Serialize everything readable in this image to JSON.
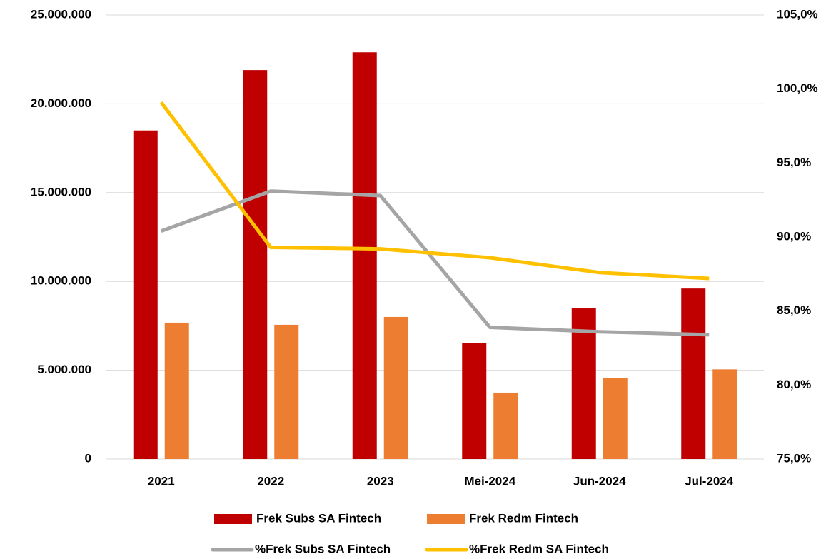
{
  "chart_data": {
    "type": "bar",
    "categories": [
      "2021",
      "2022",
      "2023",
      "Mei-2024",
      "Jun-2024",
      "Jul-2024"
    ],
    "series": [
      {
        "name": "Frek Subs SA Fintech",
        "type": "bar",
        "color": "#c00000",
        "values": [
          18500000,
          21900000,
          22900000,
          6550000,
          8480000,
          9600000
        ]
      },
      {
        "name": "Frek Redm Fintech",
        "type": "bar",
        "color": "#ed7d31",
        "values": [
          7680000,
          7560000,
          8000000,
          3740000,
          4580000,
          5050000
        ]
      },
      {
        "name": "%Frek Subs SA Fintech",
        "type": "line",
        "axis": "y2",
        "color": "#a5a5a5",
        "values": [
          90.4,
          93.1,
          92.8,
          83.9,
          83.6,
          83.4
        ]
      },
      {
        "name": "%Frek Redm SA Fintech",
        "type": "line",
        "axis": "y2",
        "color": "#ffc000",
        "values": [
          99.1,
          89.3,
          89.2,
          88.6,
          87.6,
          87.2
        ]
      }
    ],
    "ylim": [
      0,
      25000000
    ],
    "yticks": [
      0,
      {
        "value": 5000000,
        "label": "5.000.000"
      },
      {
        "value": 10000000,
        "label": "10.000.000"
      },
      {
        "value": 15000000,
        "label": "15.000.000"
      },
      {
        "value": 20000000,
        "label": "20.000.000"
      },
      {
        "value": 25000000,
        "label": "25.000.000"
      }
    ],
    "y2lim": [
      75,
      105
    ],
    "y2ticks": [
      {
        "value": 75,
        "label": "75,0%"
      },
      {
        "value": 80,
        "label": "80,0%"
      },
      {
        "value": 85,
        "label": "85,0%"
      },
      {
        "value": 90,
        "label": "90,0%"
      },
      {
        "value": 95,
        "label": "95,0%"
      },
      {
        "value": 100,
        "label": "100,0%"
      },
      {
        "value": 105,
        "label": "105,0%"
      }
    ],
    "grid": true,
    "legend": "bottom"
  }
}
